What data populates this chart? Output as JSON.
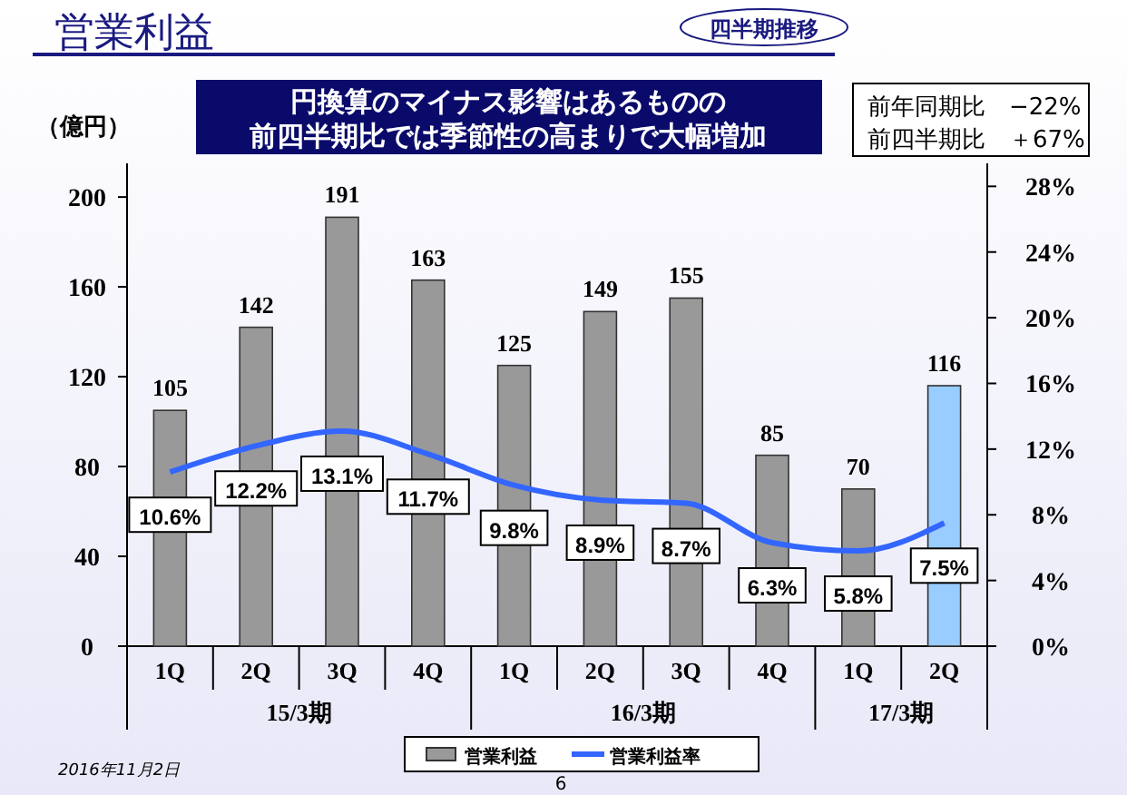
{
  "chart_data": {
    "type": "bar",
    "title": "営業利益",
    "subtitle": "円換算のマイナス影響はあるものの",
    "ylabel": "（億円）",
    "categories": [
      "1Q",
      "2Q",
      "3Q",
      "4Q",
      "1Q",
      "2Q",
      "3Q",
      "4Q",
      "1Q",
      "2Q"
    ],
    "series": [
      {
        "name": "営業利益",
        "type": "bar",
        "color": "#999999",
        "colors": [
          "#999999",
          "#999999",
          "#999999",
          "#999999",
          "#999999",
          "#999999",
          "#999999",
          "#999999",
          "#999999",
          "#99ccff"
        ],
        "values": [
          105,
          142,
          191,
          163,
          125,
          149,
          155,
          85,
          70,
          116
        ]
      },
      {
        "name": "営業利益率",
        "type": "line",
        "axis": "y2",
        "color": "#3366ff",
        "values": [
          10.6,
          12.2,
          13.1,
          11.7,
          9.8,
          8.9,
          8.7,
          6.3,
          5.8,
          7.5
        ],
        "value_labels": [
          "10.6%",
          "12.2%",
          "13.1%",
          "11.7%",
          "9.8%",
          "8.9%",
          "8.7%",
          "6.3%",
          "5.8%",
          "7.5%"
        ]
      }
    ],
    "data_labels": true,
    "ylim": [
      0,
      215
    ],
    "yticks": [
      0,
      40,
      80,
      120,
      160,
      200
    ],
    "y2lim": [
      0,
      29.4
    ],
    "y2ticks": [
      {
        "value": 0,
        "label": "0%"
      },
      {
        "value": 4,
        "label": "4%"
      },
      {
        "value": 8,
        "label": "8%"
      },
      {
        "value": 12,
        "label": "12%"
      },
      {
        "value": 16,
        "label": "16%"
      },
      {
        "value": 20,
        "label": "20%"
      },
      {
        "value": 24,
        "label": "24%"
      },
      {
        "value": 28,
        "label": "28%"
      }
    ],
    "legend": "bottom",
    "grid": false,
    "annotations": [
      "前四半期比では季節性の高まりで大幅増加",
      "四半期推移",
      "前年同期比　−22%",
      "前四半期比　＋67%",
      "15/3期",
      "16/3期",
      "17/3期",
      "2016年11月2日",
      "6"
    ]
  }
}
